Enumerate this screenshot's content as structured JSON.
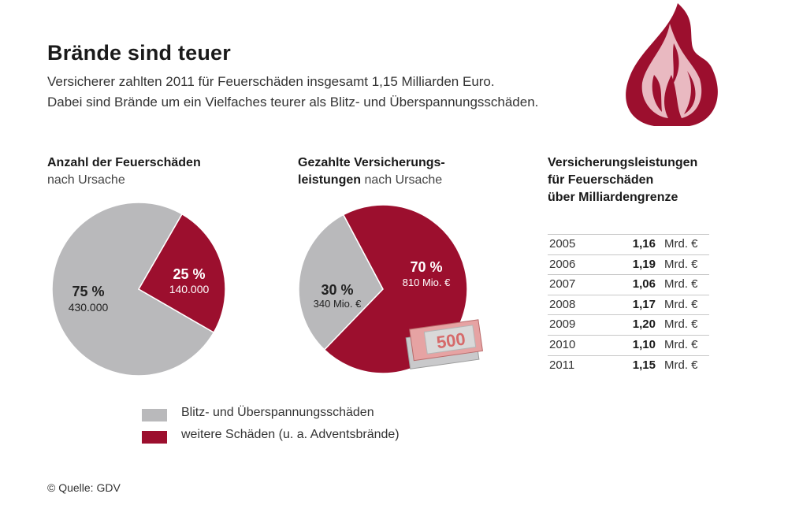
{
  "title": "Brände sind teuer",
  "subtitle_lines": [
    "Versicherer zahlten 2011 für Feuerschäden insgesamt 1,15 Milliarden Euro.",
    "Dabei sind Brände um ein Vielfaches teurer als Blitz- und Überspannungsschäden."
  ],
  "colors": {
    "gray": "#b9b9bb",
    "red": "#9c0f2e",
    "flame_light": "#e9b9c1",
    "note": "#e08a8a"
  },
  "chart_data": [
    {
      "type": "pie",
      "title_bold": "Anzahl der Feuerschäden",
      "title_light": "nach Ursache",
      "slices": [
        {
          "name": "Blitz- und Überspannungsschäden",
          "percent": 75,
          "percent_label": "75 %",
          "value_label": "430.000"
        },
        {
          "name": "weitere Schäden (u. a. Adventsbrände)",
          "percent": 25,
          "percent_label": "25 %",
          "value_label": "140.000"
        }
      ]
    },
    {
      "type": "pie",
      "title_bold_1": "Gezahlte Versicherungs-",
      "title_bold_2": "leistungen",
      "title_light": "nach Ursache",
      "slices": [
        {
          "name": "Blitz- und Überspannungsschäden",
          "percent": 30,
          "percent_label": "30 %",
          "value_label": "340 Mio. €"
        },
        {
          "name": "weitere Schäden (u. a. Adventsbrände)",
          "percent": 70,
          "percent_label": "70 %",
          "value_label": "810 Mio. €"
        }
      ],
      "banknote_label": "500"
    },
    {
      "type": "table",
      "title_lines": [
        "Versicherungsleistungen",
        "für Feuerschäden",
        "über Milliardengrenze"
      ],
      "rows": [
        {
          "year": "2005",
          "value": "1,16",
          "unit": "Mrd. €"
        },
        {
          "year": "2006",
          "value": "1,19",
          "unit": "Mrd. €"
        },
        {
          "year": "2007",
          "value": "1,06",
          "unit": "Mrd. €"
        },
        {
          "year": "2008",
          "value": "1,17",
          "unit": "Mrd. €"
        },
        {
          "year": "2009",
          "value": "1,20",
          "unit": "Mrd. €"
        },
        {
          "year": "2010",
          "value": "1,10",
          "unit": "Mrd. €"
        },
        {
          "year": "2011",
          "value": "1,15",
          "unit": "Mrd. €"
        }
      ]
    }
  ],
  "legend": [
    {
      "label": "Blitz- und Überspannungsschäden",
      "color": "#b9b9bb"
    },
    {
      "label": "weitere Schäden (u. a. Adventsbrände)",
      "color": "#9c0f2e"
    }
  ],
  "flame_icon": "flame-icon",
  "source": "© Quelle: GDV"
}
